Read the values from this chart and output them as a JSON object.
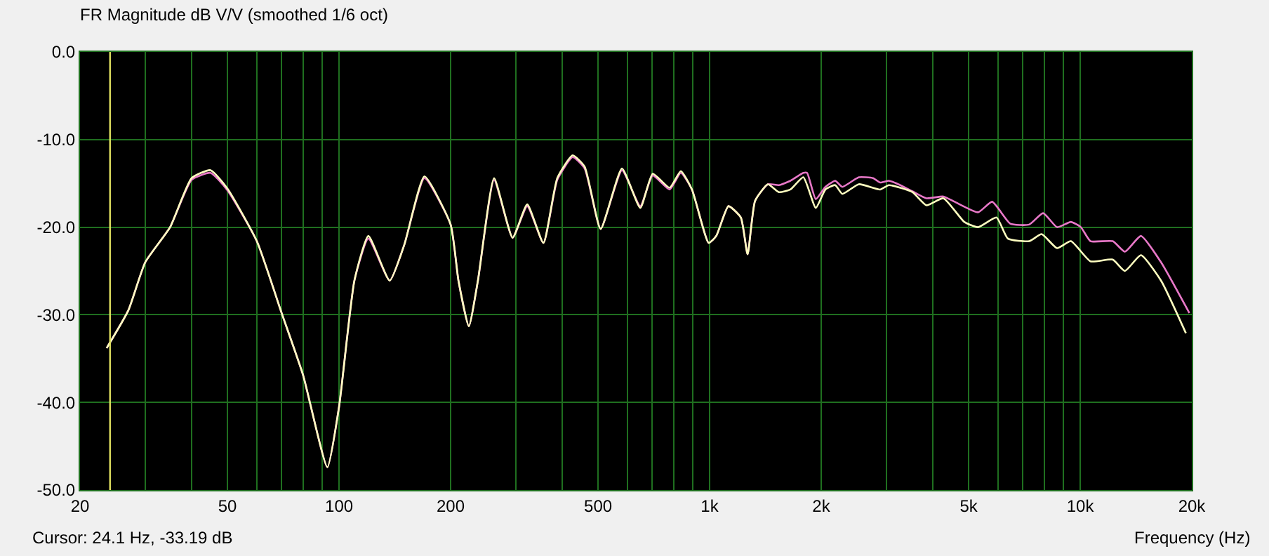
{
  "chart_data": {
    "type": "line",
    "title": "FR Magnitude dB V/V (smoothed 1/6 oct)",
    "xlabel": "Frequency (Hz)",
    "log": "x",
    "grid": true,
    "marker": "none",
    "line_style": "solid",
    "xlim": [
      20,
      20000
    ],
    "xticks": [
      {
        "value": 20,
        "label": "20"
      },
      {
        "value": 30,
        "label": null
      },
      {
        "value": 40,
        "label": null
      },
      {
        "value": 50,
        "label": "50"
      },
      {
        "value": 60,
        "label": null
      },
      {
        "value": 70,
        "label": null
      },
      {
        "value": 80,
        "label": null
      },
      {
        "value": 90,
        "label": null
      },
      {
        "value": 100,
        "label": "100"
      },
      {
        "value": 200,
        "label": "200"
      },
      {
        "value": 300,
        "label": null
      },
      {
        "value": 400,
        "label": null
      },
      {
        "value": 500,
        "label": "500"
      },
      {
        "value": 600,
        "label": null
      },
      {
        "value": 700,
        "label": null
      },
      {
        "value": 800,
        "label": null
      },
      {
        "value": 900,
        "label": null
      },
      {
        "value": 1000,
        "label": "1k"
      },
      {
        "value": 2000,
        "label": "2k"
      },
      {
        "value": 3000,
        "label": null
      },
      {
        "value": 4000,
        "label": null
      },
      {
        "value": 5000,
        "label": "5k"
      },
      {
        "value": 6000,
        "label": null
      },
      {
        "value": 7000,
        "label": null
      },
      {
        "value": 8000,
        "label": null
      },
      {
        "value": 9000,
        "label": null
      },
      {
        "value": 10000,
        "label": "10k"
      },
      {
        "value": 20000,
        "label": "20k"
      }
    ],
    "ylim": [
      -50,
      0
    ],
    "yticks": [
      {
        "value": -50,
        "label": "-50.0"
      },
      {
        "value": -40,
        "label": "-40.0"
      },
      {
        "value": -30,
        "label": "-30.0"
      },
      {
        "value": -20,
        "label": "-20.0"
      },
      {
        "value": -10,
        "label": "-10.0"
      },
      {
        "value": 0,
        "label": "0.0"
      }
    ],
    "ref_lines": [
      {
        "axis": "x",
        "value": 24.1,
        "color": "#e0e060"
      }
    ],
    "annotations": [
      "Cursor: 24.1 Hz, -33.19 dB"
    ],
    "series": [
      {
        "color": "#e878c8",
        "x": [
          23.6,
          27,
          30,
          35,
          40,
          45,
          50,
          60,
          70,
          80,
          93,
          100,
          110,
          120,
          137,
          150,
          170,
          200,
          210,
          224,
          237,
          262,
          294,
          322,
          356,
          388,
          427,
          460,
          508,
          580,
          650,
          702,
          780,
          836,
          896,
          994,
          1042,
          1124,
          1214,
          1266,
          1326,
          1436,
          1538,
          1652,
          1790,
          1832,
          1934,
          2053,
          2182,
          2280,
          2527,
          2760,
          2884,
          3046,
          3230,
          3524,
          3846,
          4274,
          4580,
          5300,
          5784,
          6476,
          7280,
          7940,
          8660,
          9436,
          10040,
          10660,
          12240,
          13200,
          14580,
          16520,
          19700
        ],
        "values": [
          -33.8,
          -29.5,
          -24,
          -20,
          -14.6,
          -13.8,
          -15.8,
          -21.6,
          -29.8,
          -36.9,
          -47.4,
          -40.5,
          -26.1,
          -21.3,
          -26.1,
          -22,
          -14.4,
          -19.7,
          -26.1,
          -31.3,
          -26.1,
          -14.6,
          -21.2,
          -17.6,
          -21.8,
          -14.6,
          -12,
          -13.3,
          -20.2,
          -13.5,
          -17.6,
          -14.1,
          -15.7,
          -13.8,
          -15.7,
          -21.8,
          -21,
          -17.6,
          -18.9,
          -23.1,
          -17,
          -15.1,
          -15.2,
          -14.7,
          -13.8,
          -13.8,
          -16.8,
          -15.4,
          -14.7,
          -15.4,
          -14.3,
          -14.4,
          -14.9,
          -14.7,
          -15.1,
          -15.9,
          -16.7,
          -16.5,
          -17.1,
          -18.3,
          -17.1,
          -19.6,
          -19.7,
          -18.4,
          -20,
          -19.4,
          -20,
          -21.6,
          -21.6,
          -22.8,
          -21,
          -24,
          -29.8
        ]
      },
      {
        "color": "#ffffc0",
        "x": [
          23.6,
          27,
          30,
          35,
          40,
          45,
          50,
          60,
          70,
          80,
          93,
          100,
          110,
          120,
          137,
          150,
          170,
          200,
          210,
          224,
          237,
          262,
          294,
          322,
          356,
          388,
          427,
          460,
          508,
          580,
          650,
          702,
          780,
          836,
          896,
          994,
          1042,
          1124,
          1214,
          1266,
          1326,
          1436,
          1538,
          1652,
          1790,
          1934,
          2053,
          2182,
          2280,
          2527,
          2884,
          3046,
          3524,
          3846,
          4274,
          4866,
          5300,
          5944,
          6380,
          7280,
          7870,
          8660,
          9436,
          10660,
          12240,
          13200,
          14580,
          16520,
          19280
        ],
        "values": [
          -33.8,
          -29.5,
          -24,
          -20,
          -14.4,
          -13.5,
          -15.6,
          -21.6,
          -29.8,
          -36.9,
          -47.4,
          -40.5,
          -26.1,
          -21,
          -26.1,
          -22,
          -14.2,
          -19.7,
          -26.1,
          -31.3,
          -26.1,
          -14.4,
          -21.2,
          -17.4,
          -21.8,
          -14.4,
          -11.8,
          -13.1,
          -20.2,
          -13.3,
          -17.8,
          -13.9,
          -15.5,
          -13.6,
          -15.7,
          -21.8,
          -21,
          -17.6,
          -18.9,
          -23.1,
          -17,
          -15.1,
          -16,
          -15.7,
          -14.3,
          -17.8,
          -15.7,
          -15.2,
          -16.2,
          -15.1,
          -15.7,
          -15.2,
          -16,
          -17.5,
          -16.7,
          -19.4,
          -20,
          -18.9,
          -21.3,
          -21.6,
          -20.8,
          -22.4,
          -21.6,
          -23.9,
          -23.7,
          -25,
          -23.2,
          -26.1,
          -32.1
        ]
      }
    ]
  }
}
